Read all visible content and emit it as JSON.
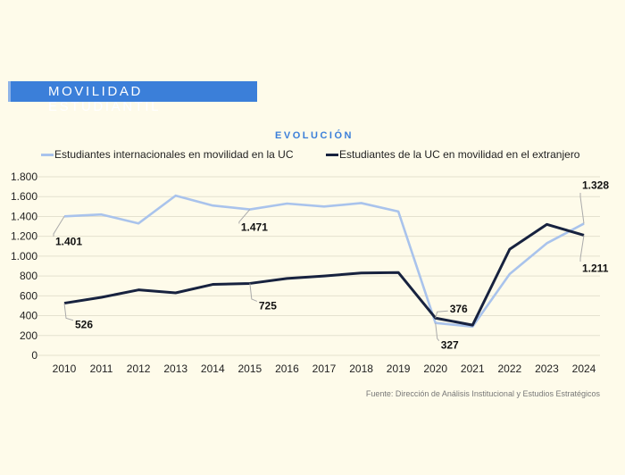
{
  "header": {
    "title": "MOVILIDAD ESTUDIANTIL"
  },
  "source": "Fuente: Dirección de Análisis Institucional y Estudios Estratégicos",
  "chart_data": {
    "type": "line",
    "title": "EVOLUCIÓN",
    "xlabel": "",
    "ylabel": "",
    "x": [
      2010,
      2011,
      2012,
      2013,
      2014,
      2015,
      2016,
      2017,
      2018,
      2019,
      2020,
      2021,
      2022,
      2023,
      2024
    ],
    "x_tick_labels": [
      "2010",
      "2011",
      "2012",
      "2013",
      "2014",
      "2015",
      "2016",
      "2017",
      "2018",
      "2019",
      "2020",
      "2021",
      "2022",
      "2023",
      "2024"
    ],
    "ylim": [
      0,
      1800
    ],
    "y_ticks": [
      0,
      200,
      400,
      600,
      800,
      1000,
      1200,
      1400,
      1600,
      1800
    ],
    "y_tick_labels": [
      "0",
      "200",
      "400",
      "600",
      "800",
      "1.000",
      "1.200",
      "1.400",
      "1.600",
      "1.800"
    ],
    "grid": true,
    "legend_position": "top",
    "series": [
      {
        "name": "Estudiantes internacionales en movilidad en la UC",
        "color": "#a9c3ec",
        "values": [
          1401,
          1420,
          1330,
          1610,
          1510,
          1471,
          1530,
          1500,
          1535,
          1450,
          327,
          290,
          820,
          1130,
          1328
        ]
      },
      {
        "name": "Estudiantes de la UC en movilidad en el extranjero",
        "color": "#17223f",
        "values": [
          526,
          585,
          660,
          630,
          715,
          725,
          775,
          800,
          830,
          835,
          376,
          305,
          1070,
          1320,
          1211
        ]
      }
    ],
    "annotations": [
      {
        "series": 0,
        "x": 2010,
        "text": "1.401"
      },
      {
        "series": 0,
        "x": 2015,
        "text": "1.471"
      },
      {
        "series": 0,
        "x": 2020,
        "text": "327"
      },
      {
        "series": 0,
        "x": 2024,
        "text": "1.328"
      },
      {
        "series": 1,
        "x": 2010,
        "text": "526"
      },
      {
        "series": 1,
        "x": 2015,
        "text": "725"
      },
      {
        "series": 1,
        "x": 2020,
        "text": "376"
      },
      {
        "series": 1,
        "x": 2024,
        "text": "1.211"
      }
    ]
  }
}
